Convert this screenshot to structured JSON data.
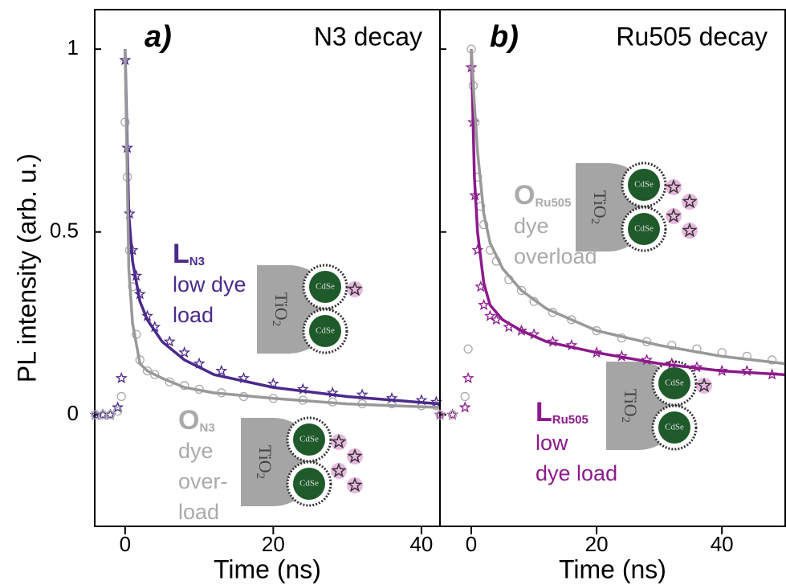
{
  "chart_data": [
    {
      "type": "scatter",
      "panel_label": "a)",
      "title": "N3 decay",
      "ylabel": "PL intensity (arb. u.)",
      "xlabel": "Time (ns)",
      "xlim": [
        -4.1,
        42.5
      ],
      "ylim": [
        -0.305,
        1.108
      ],
      "xticks": [
        0,
        20,
        40
      ],
      "yticks": [
        0,
        0.5,
        1
      ],
      "series": [
        {
          "marker": "star",
          "color": "#4b2a8c",
          "x": [
            -4,
            -3,
            -2,
            -1,
            -0.5,
            0,
            0.3,
            0.6,
            1,
            1.5,
            2,
            3,
            4,
            6,
            8,
            10,
            13,
            16,
            20,
            24,
            28,
            32,
            36,
            40,
            42
          ],
          "values": [
            0,
            0,
            0,
            0.02,
            0.1,
            0.97,
            0.73,
            0.55,
            0.45,
            0.38,
            0.33,
            0.27,
            0.24,
            0.2,
            0.17,
            0.14,
            0.12,
            0.1,
            0.085,
            0.07,
            0.06,
            0.055,
            0.045,
            0.04,
            0.035
          ]
        },
        {
          "marker": "circle",
          "color": "#aaaaaa",
          "x": [
            -4,
            -3,
            -2,
            -1,
            -0.5,
            0,
            0.3,
            0.6,
            1,
            1.5,
            2,
            3,
            4,
            6,
            8,
            10,
            13,
            16,
            20,
            24,
            28,
            32,
            36,
            40,
            42
          ],
          "values": [
            0,
            0,
            0,
            0.01,
            0.05,
            0.8,
            0.65,
            0.45,
            0.35,
            0.22,
            0.15,
            0.12,
            0.11,
            0.09,
            0.08,
            0.07,
            0.06,
            0.05,
            0.045,
            0.04,
            0.035,
            0.03,
            0.03,
            0.025,
            0.025
          ]
        },
        {
          "marker": "line",
          "color": "#4b2a8c",
          "x": [
            0,
            0.5,
            1,
            2,
            3,
            5,
            8,
            12,
            20,
            30,
            42.5
          ],
          "values": [
            1,
            0.55,
            0.42,
            0.31,
            0.26,
            0.2,
            0.15,
            0.11,
            0.075,
            0.05,
            0.03
          ]
        },
        {
          "marker": "line",
          "color": "#999999",
          "x": [
            0,
            0.5,
            1,
            2,
            3,
            5,
            8,
            12,
            20,
            30,
            42.5
          ],
          "values": [
            1,
            0.4,
            0.25,
            0.14,
            0.12,
            0.1,
            0.075,
            0.06,
            0.045,
            0.03,
            0.02
          ]
        }
      ],
      "annotations": [
        {
          "text": "L",
          "sub": "N3",
          "lines": [
            "low dye",
            "load"
          ],
          "color": "#4b2a8c"
        },
        {
          "text": "O",
          "sub": "N3",
          "lines": [
            "dye",
            "over-",
            "load"
          ],
          "color": "#aaaaaa"
        }
      ]
    },
    {
      "type": "scatter",
      "panel_label": "b)",
      "title": "Ru505 decay",
      "xlabel": "Time (ns)",
      "xlim": [
        -5,
        50.1
      ],
      "ylim": [
        -0.305,
        1.108
      ],
      "xticks": [
        0,
        20,
        40
      ],
      "yticks": [
        0,
        0.5,
        1
      ],
      "series": [
        {
          "marker": "star",
          "color": "#8b1a8b",
          "x": [
            -5,
            -3,
            -1,
            -0.5,
            0,
            0.3,
            0.6,
            1,
            1.5,
            2,
            3,
            4,
            6,
            8,
            10,
            13,
            16,
            20,
            24,
            28,
            32,
            36,
            40,
            44,
            48
          ],
          "values": [
            0,
            0,
            0.02,
            0.1,
            0.95,
            0.8,
            0.6,
            0.45,
            0.35,
            0.3,
            0.27,
            0.26,
            0.24,
            0.23,
            0.22,
            0.2,
            0.19,
            0.17,
            0.16,
            0.15,
            0.14,
            0.13,
            0.12,
            0.12,
            0.11
          ]
        },
        {
          "marker": "circle",
          "color": "#aaaaaa",
          "x": [
            -5,
            -3,
            -1,
            -0.5,
            0,
            0.3,
            0.6,
            1,
            1.5,
            2,
            3,
            4,
            6,
            8,
            10,
            13,
            16,
            20,
            24,
            28,
            32,
            36,
            40,
            44,
            48
          ],
          "values": [
            0,
            0,
            0.05,
            0.18,
            1,
            0.9,
            0.8,
            0.65,
            0.57,
            0.52,
            0.45,
            0.42,
            0.37,
            0.34,
            0.31,
            0.28,
            0.26,
            0.23,
            0.21,
            0.2,
            0.19,
            0.18,
            0.17,
            0.16,
            0.15
          ]
        },
        {
          "marker": "line",
          "color": "#8b1a8b",
          "x": [
            0,
            0.5,
            1,
            2,
            3,
            5,
            8,
            12,
            20,
            30,
            40,
            50
          ],
          "values": [
            1,
            0.65,
            0.5,
            0.36,
            0.3,
            0.26,
            0.23,
            0.2,
            0.17,
            0.14,
            0.12,
            0.11
          ]
        },
        {
          "marker": "line",
          "color": "#999999",
          "x": [
            0,
            0.5,
            1,
            2,
            3,
            5,
            8,
            12,
            20,
            30,
            40,
            50
          ],
          "values": [
            1,
            0.85,
            0.72,
            0.55,
            0.47,
            0.4,
            0.34,
            0.29,
            0.23,
            0.19,
            0.16,
            0.14
          ]
        }
      ],
      "annotations": [
        {
          "text": "O",
          "sub": "Ru505",
          "lines": [
            "dye",
            "overload"
          ],
          "color": "#aaaaaa"
        },
        {
          "text": "L",
          "sub": "Ru505",
          "lines": [
            "low",
            "dye load"
          ],
          "color": "#8b1a8b"
        }
      ]
    }
  ],
  "inset": {
    "substrate": "TiO",
    "substrate_sub": "2",
    "particle": "CdSe"
  }
}
